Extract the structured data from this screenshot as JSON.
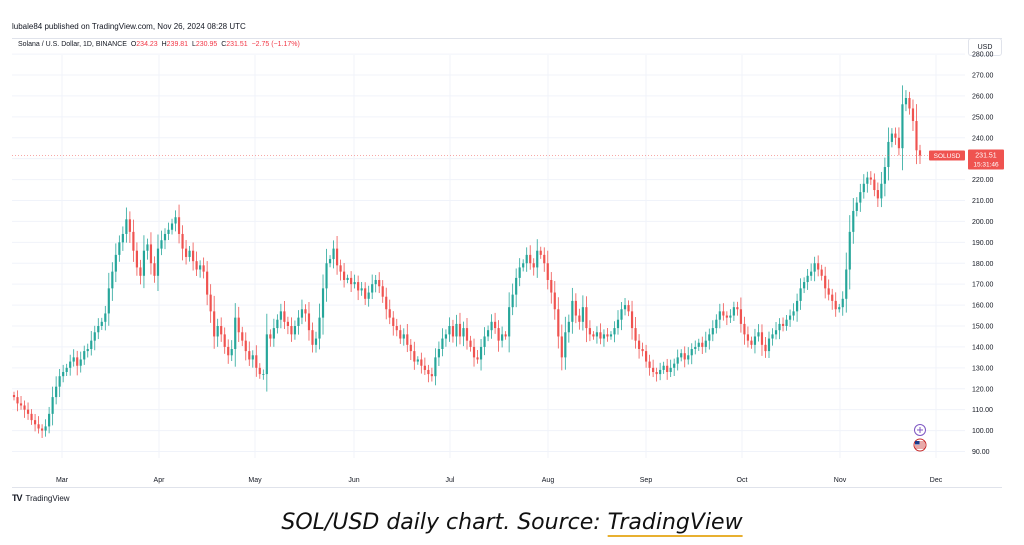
{
  "header": {
    "publisher": "lubale84 published on TradingView.com, Nov 26, 2024 08:28 UTC"
  },
  "legend": {
    "symbol": "Solana / U.S. Dollar, 1D, BINANCE",
    "open_label": "O",
    "open": "234.23",
    "high_label": "H",
    "high": "239.81",
    "low_label": "L",
    "low": "230.95",
    "close_label": "C",
    "close": "231.51",
    "change": "−2.75 (−1.17%)"
  },
  "currency": "USD",
  "price_tag": {
    "symbol": "SOLUSD",
    "price": "231.51",
    "countdown": "15:31:46"
  },
  "branding": {
    "logo_mark": "TV",
    "name": "TradingView"
  },
  "caption": {
    "text": "SOL/USD daily chart. Source: ",
    "source": "TradingView"
  },
  "colors": {
    "up": "#26a69a",
    "down": "#ef5350",
    "grid": "#f0f3fa",
    "price_line": "#ef5350"
  },
  "icons": [
    "tradingview-logo-icon",
    "crosshair-plus-icon",
    "us-flag-icon"
  ],
  "chart_data": {
    "type": "candlestick",
    "x_tick_labels": [
      "Mar",
      "Apr",
      "May",
      "Jun",
      "Jul",
      "Aug",
      "Sep",
      "Oct",
      "Nov",
      "Dec"
    ],
    "y_tick_labels": [
      "90.00",
      "100.00",
      "110.00",
      "120.00",
      "130.00",
      "140.00",
      "150.00",
      "160.00",
      "170.00",
      "180.00",
      "190.00",
      "200.00",
      "210.00",
      "220.00",
      "230.00",
      "240.00",
      "250.00",
      "260.00",
      "270.00",
      "280.00"
    ],
    "ylim": [
      88,
      283
    ],
    "current_price": 231.51,
    "legend_placement": "top-left",
    "grid": true,
    "close": [
      116,
      113,
      112,
      110,
      108,
      105,
      103,
      101,
      100,
      102,
      108,
      116,
      121,
      126,
      128,
      130,
      133,
      135,
      131,
      134,
      138,
      139,
      143,
      147,
      150,
      152,
      156,
      168,
      176,
      184,
      190,
      194,
      201,
      195,
      186,
      178,
      174,
      186,
      189,
      180,
      174,
      187,
      191,
      194,
      196,
      199,
      202,
      194,
      187,
      183,
      186,
      181,
      177,
      179,
      176,
      165,
      157,
      145,
      150,
      146,
      140,
      136,
      139,
      154,
      147,
      143,
      138,
      134,
      136,
      130,
      127,
      127,
      146,
      144,
      149,
      153,
      157,
      152,
      150,
      146,
      150,
      154,
      158,
      156,
      148,
      141,
      144,
      154,
      168,
      180,
      182,
      187,
      179,
      176,
      172,
      173,
      170,
      171,
      167,
      168,
      163,
      166,
      170,
      172,
      169,
      164,
      158,
      154,
      150,
      148,
      144,
      146,
      141,
      138,
      133,
      134,
      131,
      129,
      127,
      126,
      135,
      139,
      144,
      146,
      150,
      145,
      151,
      145,
      149,
      143,
      140,
      135,
      134,
      140,
      145,
      148,
      152,
      149,
      143,
      146,
      145,
      159,
      165,
      173,
      178,
      180,
      184,
      180,
      178,
      186,
      184,
      180,
      172,
      166,
      158,
      145,
      135,
      147,
      152,
      162,
      155,
      152,
      159,
      149,
      146,
      145,
      147,
      144,
      146,
      145,
      146,
      149,
      153,
      158,
      160,
      157,
      149,
      143,
      139,
      138,
      133,
      130,
      128,
      127,
      129,
      131,
      128,
      130,
      132,
      135,
      137,
      134,
      136,
      139,
      140,
      142,
      140,
      143,
      146,
      149,
      153,
      157,
      155,
      154,
      155,
      159,
      158,
      151,
      146,
      143,
      141,
      145,
      147,
      141,
      138,
      144,
      146,
      148,
      151,
      150,
      153,
      155,
      157,
      162,
      168,
      171,
      174,
      176,
      180,
      177,
      174,
      168,
      165,
      162,
      158,
      159,
      163,
      177,
      195,
      205,
      209,
      214,
      218,
      221,
      220,
      215,
      211,
      218,
      226,
      238,
      242,
      240,
      235,
      256,
      259,
      254,
      248,
      234,
      231.51
    ]
  }
}
